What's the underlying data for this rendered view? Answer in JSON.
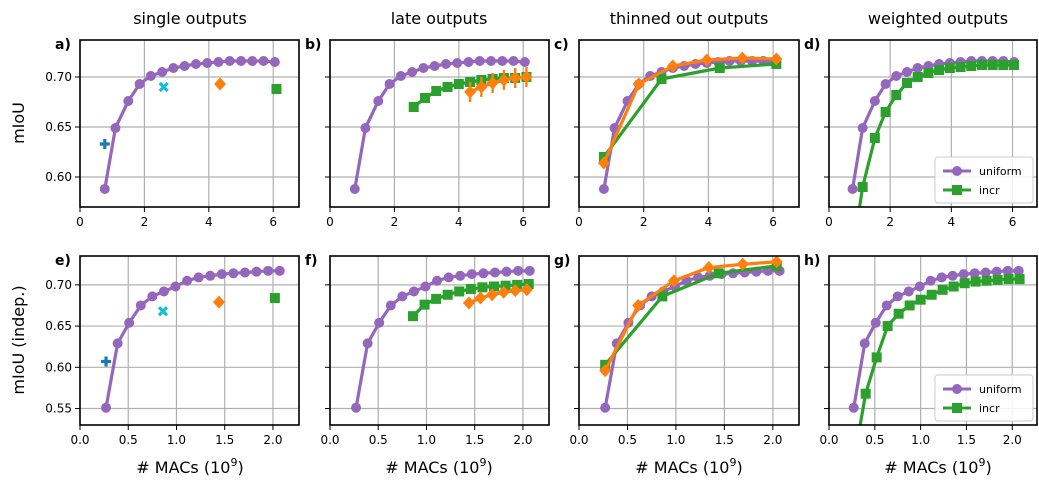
{
  "columns": [
    "single outputs",
    "late outputs",
    "thinned out outputs",
    "weighted outputs"
  ],
  "colors": {
    "uniform": "#9467bd",
    "incr": "#2ca02c",
    "orange": "#ff7f0e",
    "cyan": "#17becf",
    "blue": "#1f77b4",
    "grid": "#b0b0b0"
  },
  "rows": [
    {
      "ylabel": "mIoU",
      "xtick_labels": [
        "0",
        "2",
        "4",
        "6"
      ],
      "ytick_labels": [
        "0.60",
        "0.65",
        "0.70"
      ]
    },
    {
      "ylabel": "mIoU (indep.)",
      "xlabel_text": "# MACs (10",
      "xlabel_sup": "9",
      "xlabel_close": ")",
      "xtick_labels": [
        "0.0",
        "0.5",
        "1.0",
        "1.5",
        "2.0"
      ],
      "ytick_labels": [
        "0.55",
        "0.60",
        "0.65",
        "0.70"
      ]
    }
  ],
  "legend": {
    "uniform": "uniform",
    "incr": "incr"
  },
  "chart_data": [
    {
      "panel": "a)",
      "type": "line",
      "xlim": [
        0,
        6.8
      ],
      "ylim": [
        0.57,
        0.737
      ],
      "grid": true,
      "series": [
        {
          "name": "uniform",
          "marker": "circle",
          "line": true,
          "x": [
            0.77,
            1.1,
            1.5,
            1.85,
            2.2,
            2.55,
            2.9,
            3.25,
            3.6,
            3.95,
            4.3,
            4.65,
            5.0,
            5.35,
            5.7,
            6.05
          ],
          "y": [
            0.588,
            0.649,
            0.676,
            0.693,
            0.701,
            0.705,
            0.709,
            0.711,
            0.713,
            0.714,
            0.715,
            0.716,
            0.716,
            0.716,
            0.716,
            0.715
          ]
        },
        {
          "marker": "plus",
          "color": "blue",
          "x": [
            0.77
          ],
          "y": [
            0.633
          ]
        },
        {
          "marker": "x",
          "color": "cyan",
          "x": [
            2.6
          ],
          "y": [
            0.69
          ]
        },
        {
          "marker": "diamond",
          "color": "orange",
          "x": [
            4.35
          ],
          "y": [
            0.693
          ]
        },
        {
          "marker": "square",
          "color": "incr",
          "x": [
            6.1
          ],
          "y": [
            0.688
          ]
        }
      ]
    },
    {
      "panel": "b)",
      "type": "line",
      "xlim": [
        0,
        6.8
      ],
      "ylim": [
        0.57,
        0.737
      ],
      "grid": true,
      "series": [
        {
          "name": "uniform",
          "marker": "circle",
          "line": true,
          "x": [
            0.77,
            1.1,
            1.5,
            1.85,
            2.2,
            2.55,
            2.9,
            3.25,
            3.6,
            3.95,
            4.3,
            4.65,
            5.0,
            5.35,
            5.7,
            6.05
          ],
          "y": [
            0.588,
            0.649,
            0.676,
            0.693,
            0.701,
            0.705,
            0.709,
            0.711,
            0.713,
            0.714,
            0.715,
            0.716,
            0.716,
            0.716,
            0.716,
            0.715
          ]
        },
        {
          "marker": "square",
          "color": "incr",
          "line": true,
          "x": [
            2.6,
            2.95,
            3.3,
            3.65,
            4.0,
            4.35,
            4.7,
            5.05,
            5.4,
            5.75,
            6.1
          ],
          "y": [
            0.67,
            0.679,
            0.686,
            0.69,
            0.693,
            0.695,
            0.697,
            0.698,
            0.699,
            0.699,
            0.7
          ]
        },
        {
          "marker": "diamond",
          "color": "orange",
          "line": true,
          "err": 0.01,
          "x": [
            4.35,
            4.7,
            5.05,
            5.4,
            5.75,
            6.1
          ],
          "y": [
            0.685,
            0.69,
            0.694,
            0.697,
            0.699,
            0.7
          ]
        }
      ]
    },
    {
      "panel": "c)",
      "type": "line",
      "xlim": [
        0,
        6.8
      ],
      "ylim": [
        0.57,
        0.737
      ],
      "grid": true,
      "series": [
        {
          "name": "uniform",
          "marker": "circle",
          "line": true,
          "x": [
            0.77,
            1.1,
            1.5,
            1.85,
            2.2,
            2.55,
            2.9,
            3.25,
            3.6,
            3.95,
            4.3,
            4.65,
            5.0,
            5.35,
            5.7,
            6.05
          ],
          "y": [
            0.588,
            0.649,
            0.676,
            0.693,
            0.701,
            0.705,
            0.709,
            0.711,
            0.713,
            0.714,
            0.715,
            0.716,
            0.716,
            0.716,
            0.716,
            0.715
          ]
        },
        {
          "marker": "square",
          "color": "incr",
          "line": true,
          "x": [
            0.77,
            2.55,
            4.35,
            6.1
          ],
          "y": [
            0.62,
            0.698,
            0.709,
            0.713
          ]
        },
        {
          "marker": "diamond",
          "color": "orange",
          "line": true,
          "x": [
            0.77,
            1.85,
            2.9,
            3.95,
            5.05,
            6.1
          ],
          "y": [
            0.614,
            0.693,
            0.711,
            0.717,
            0.719,
            0.718
          ]
        }
      ]
    },
    {
      "panel": "d)",
      "type": "line",
      "xlim": [
        0,
        6.8
      ],
      "ylim": [
        0.57,
        0.737
      ],
      "grid": true,
      "series": [
        {
          "name": "uniform",
          "marker": "circle",
          "line": true,
          "x": [
            0.77,
            1.1,
            1.5,
            1.85,
            2.2,
            2.55,
            2.9,
            3.25,
            3.6,
            3.95,
            4.3,
            4.65,
            5.0,
            5.35,
            5.7,
            6.05
          ],
          "y": [
            0.588,
            0.649,
            0.676,
            0.693,
            0.701,
            0.705,
            0.709,
            0.711,
            0.713,
            0.714,
            0.715,
            0.716,
            0.716,
            0.716,
            0.716,
            0.715
          ]
        },
        {
          "name": "incr",
          "marker": "square",
          "color": "incr",
          "line": true,
          "lead_in": [
            1.0,
            0.57
          ],
          "x": [
            1.1,
            1.5,
            1.85,
            2.2,
            2.55,
            2.9,
            3.25,
            3.6,
            3.95,
            4.3,
            4.65,
            5.0,
            5.35,
            5.7,
            6.05
          ],
          "y": [
            0.59,
            0.639,
            0.665,
            0.682,
            0.694,
            0.7,
            0.704,
            0.707,
            0.709,
            0.71,
            0.711,
            0.712,
            0.712,
            0.712,
            0.712
          ]
        }
      ]
    },
    {
      "panel": "e)",
      "type": "line",
      "xlim": [
        0,
        2.27
      ],
      "ylim": [
        0.53,
        0.735
      ],
      "grid": true,
      "series": [
        {
          "name": "uniform",
          "marker": "circle",
          "line": true,
          "x": [
            0.27,
            0.39,
            0.51,
            0.63,
            0.75,
            0.87,
            0.99,
            1.11,
            1.23,
            1.35,
            1.47,
            1.59,
            1.71,
            1.83,
            1.95,
            2.07
          ],
          "y": [
            0.551,
            0.629,
            0.654,
            0.675,
            0.686,
            0.692,
            0.698,
            0.705,
            0.709,
            0.711,
            0.713,
            0.714,
            0.715,
            0.716,
            0.717,
            0.717
          ]
        },
        {
          "marker": "plus",
          "color": "blue",
          "x": [
            0.27
          ],
          "y": [
            0.607
          ]
        },
        {
          "marker": "x",
          "color": "cyan",
          "x": [
            0.86
          ],
          "y": [
            0.668
          ]
        },
        {
          "marker": "diamond",
          "color": "orange",
          "x": [
            1.44
          ],
          "y": [
            0.679
          ]
        },
        {
          "marker": "square",
          "color": "incr",
          "x": [
            2.02
          ],
          "y": [
            0.684
          ]
        }
      ]
    },
    {
      "panel": "f)",
      "type": "line",
      "xlim": [
        0,
        2.27
      ],
      "ylim": [
        0.53,
        0.735
      ],
      "grid": true,
      "series": [
        {
          "name": "uniform",
          "marker": "circle",
          "line": true,
          "x": [
            0.27,
            0.39,
            0.51,
            0.63,
            0.75,
            0.87,
            0.99,
            1.11,
            1.23,
            1.35,
            1.47,
            1.59,
            1.71,
            1.83,
            1.95,
            2.07
          ],
          "y": [
            0.551,
            0.629,
            0.654,
            0.675,
            0.686,
            0.692,
            0.698,
            0.705,
            0.709,
            0.711,
            0.713,
            0.714,
            0.715,
            0.716,
            0.717,
            0.717
          ]
        },
        {
          "marker": "square",
          "color": "incr",
          "line": true,
          "x": [
            0.86,
            0.98,
            1.1,
            1.22,
            1.34,
            1.46,
            1.58,
            1.7,
            1.82,
            1.94,
            2.06
          ],
          "y": [
            0.662,
            0.676,
            0.683,
            0.688,
            0.692,
            0.695,
            0.697,
            0.698,
            0.699,
            0.7,
            0.701
          ]
        },
        {
          "marker": "diamond",
          "color": "orange",
          "line": true,
          "x": [
            1.44,
            1.56,
            1.68,
            1.8,
            1.92,
            2.04
          ],
          "y": [
            0.678,
            0.684,
            0.688,
            0.691,
            0.693,
            0.694
          ]
        }
      ]
    },
    {
      "panel": "g)",
      "type": "line",
      "xlim": [
        0,
        2.27
      ],
      "ylim": [
        0.53,
        0.735
      ],
      "grid": true,
      "series": [
        {
          "name": "uniform",
          "marker": "circle",
          "line": true,
          "x": [
            0.27,
            0.39,
            0.51,
            0.63,
            0.75,
            0.87,
            0.99,
            1.11,
            1.23,
            1.35,
            1.47,
            1.59,
            1.71,
            1.83,
            1.95,
            2.07
          ],
          "y": [
            0.551,
            0.629,
            0.654,
            0.675,
            0.686,
            0.692,
            0.698,
            0.705,
            0.709,
            0.711,
            0.713,
            0.714,
            0.715,
            0.716,
            0.717,
            0.717
          ]
        },
        {
          "marker": "square",
          "color": "incr",
          "line": true,
          "x": [
            0.27,
            0.86,
            1.44,
            2.04
          ],
          "y": [
            0.603,
            0.686,
            0.714,
            0.723
          ]
        },
        {
          "marker": "diamond",
          "color": "orange",
          "line": true,
          "x": [
            0.27,
            0.61,
            0.98,
            1.34,
            1.69,
            2.04
          ],
          "y": [
            0.596,
            0.675,
            0.705,
            0.721,
            0.725,
            0.728
          ]
        }
      ]
    },
    {
      "panel": "h)",
      "type": "line",
      "xlim": [
        0,
        2.27
      ],
      "ylim": [
        0.53,
        0.735
      ],
      "grid": true,
      "series": [
        {
          "name": "uniform",
          "marker": "circle",
          "line": true,
          "x": [
            0.27,
            0.39,
            0.51,
            0.63,
            0.75,
            0.87,
            0.99,
            1.11,
            1.23,
            1.35,
            1.47,
            1.59,
            1.71,
            1.83,
            1.95,
            2.07
          ],
          "y": [
            0.551,
            0.629,
            0.654,
            0.675,
            0.686,
            0.692,
            0.698,
            0.705,
            0.709,
            0.711,
            0.713,
            0.714,
            0.715,
            0.716,
            0.717,
            0.717
          ]
        },
        {
          "name": "incr",
          "marker": "square",
          "color": "incr",
          "line": true,
          "lead_in": [
            0.34,
            0.53
          ],
          "x": [
            0.4,
            0.52,
            0.64,
            0.76,
            0.88,
            1.0,
            1.12,
            1.24,
            1.36,
            1.48,
            1.6,
            1.72,
            1.84,
            1.96,
            2.08
          ],
          "y": [
            0.568,
            0.612,
            0.65,
            0.665,
            0.675,
            0.682,
            0.688,
            0.694,
            0.698,
            0.702,
            0.704,
            0.705,
            0.706,
            0.707,
            0.707
          ]
        }
      ]
    }
  ]
}
